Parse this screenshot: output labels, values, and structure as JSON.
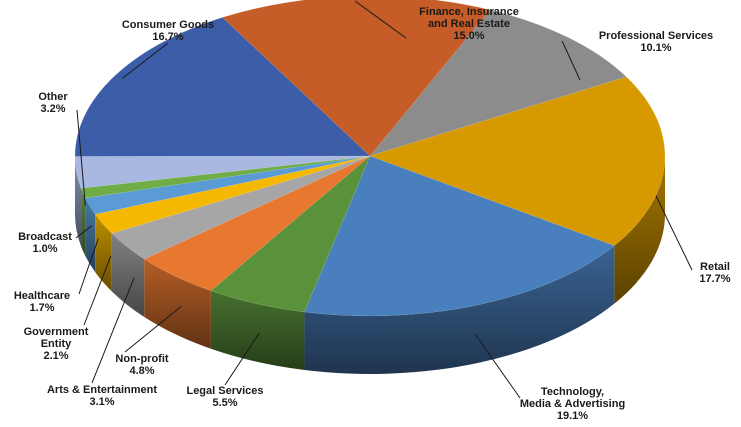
{
  "chart_data": {
    "type": "pie",
    "title": "",
    "unit": "%",
    "slices": [
      {
        "name": "Professional Services",
        "label": "Professional Services",
        "value": 10.1,
        "value_label": "10.1%",
        "color": "#8c8c8c"
      },
      {
        "name": "Retail",
        "label": "Retail",
        "value": 17.7,
        "value_label": "17.7%",
        "color": "#d69a00"
      },
      {
        "name": "Technology, Media & Advertising",
        "label": "Technology,\nMedia & Advertising",
        "value": 19.1,
        "value_label": "19.1%",
        "color": "#4a7fbd"
      },
      {
        "name": "Legal Services",
        "label": "Legal Services",
        "value": 5.5,
        "value_label": "5.5%",
        "color": "#5a913b"
      },
      {
        "name": "Non-profit",
        "label": "Non-profit",
        "value": 4.8,
        "value_label": "4.8%",
        "color": "#e8782f"
      },
      {
        "name": "Arts & Entertainment",
        "label": "Arts & Entertainment",
        "value": 3.1,
        "value_label": "3.1%",
        "color": "#a6a6a6"
      },
      {
        "name": "Government Entity",
        "label": "Government\nEntity",
        "value": 2.1,
        "value_label": "2.1%",
        "color": "#f5b800"
      },
      {
        "name": "Healthcare",
        "label": "Healthcare",
        "value": 1.7,
        "value_label": "1.7%",
        "color": "#5b9bd5"
      },
      {
        "name": "Broadcast",
        "label": "Broadcast",
        "value": 1.0,
        "value_label": "1.0%",
        "color": "#70ad47"
      },
      {
        "name": "Other",
        "label": "Other",
        "value": 3.2,
        "value_label": "3.2%",
        "color": "#a9b8e0"
      },
      {
        "name": "Consumer Goods",
        "label": "Consumer Goods",
        "value": 16.7,
        "value_label": "16.7%",
        "color": "#3c5ea8"
      },
      {
        "name": "Finance, Insurance and Real Estate",
        "label": "Finance, Insurance\nand Real Estate",
        "value": 15.0,
        "value_label": "15.0%",
        "color": "#c65c27"
      }
    ],
    "legend": "none",
    "style": "3d-pie"
  }
}
